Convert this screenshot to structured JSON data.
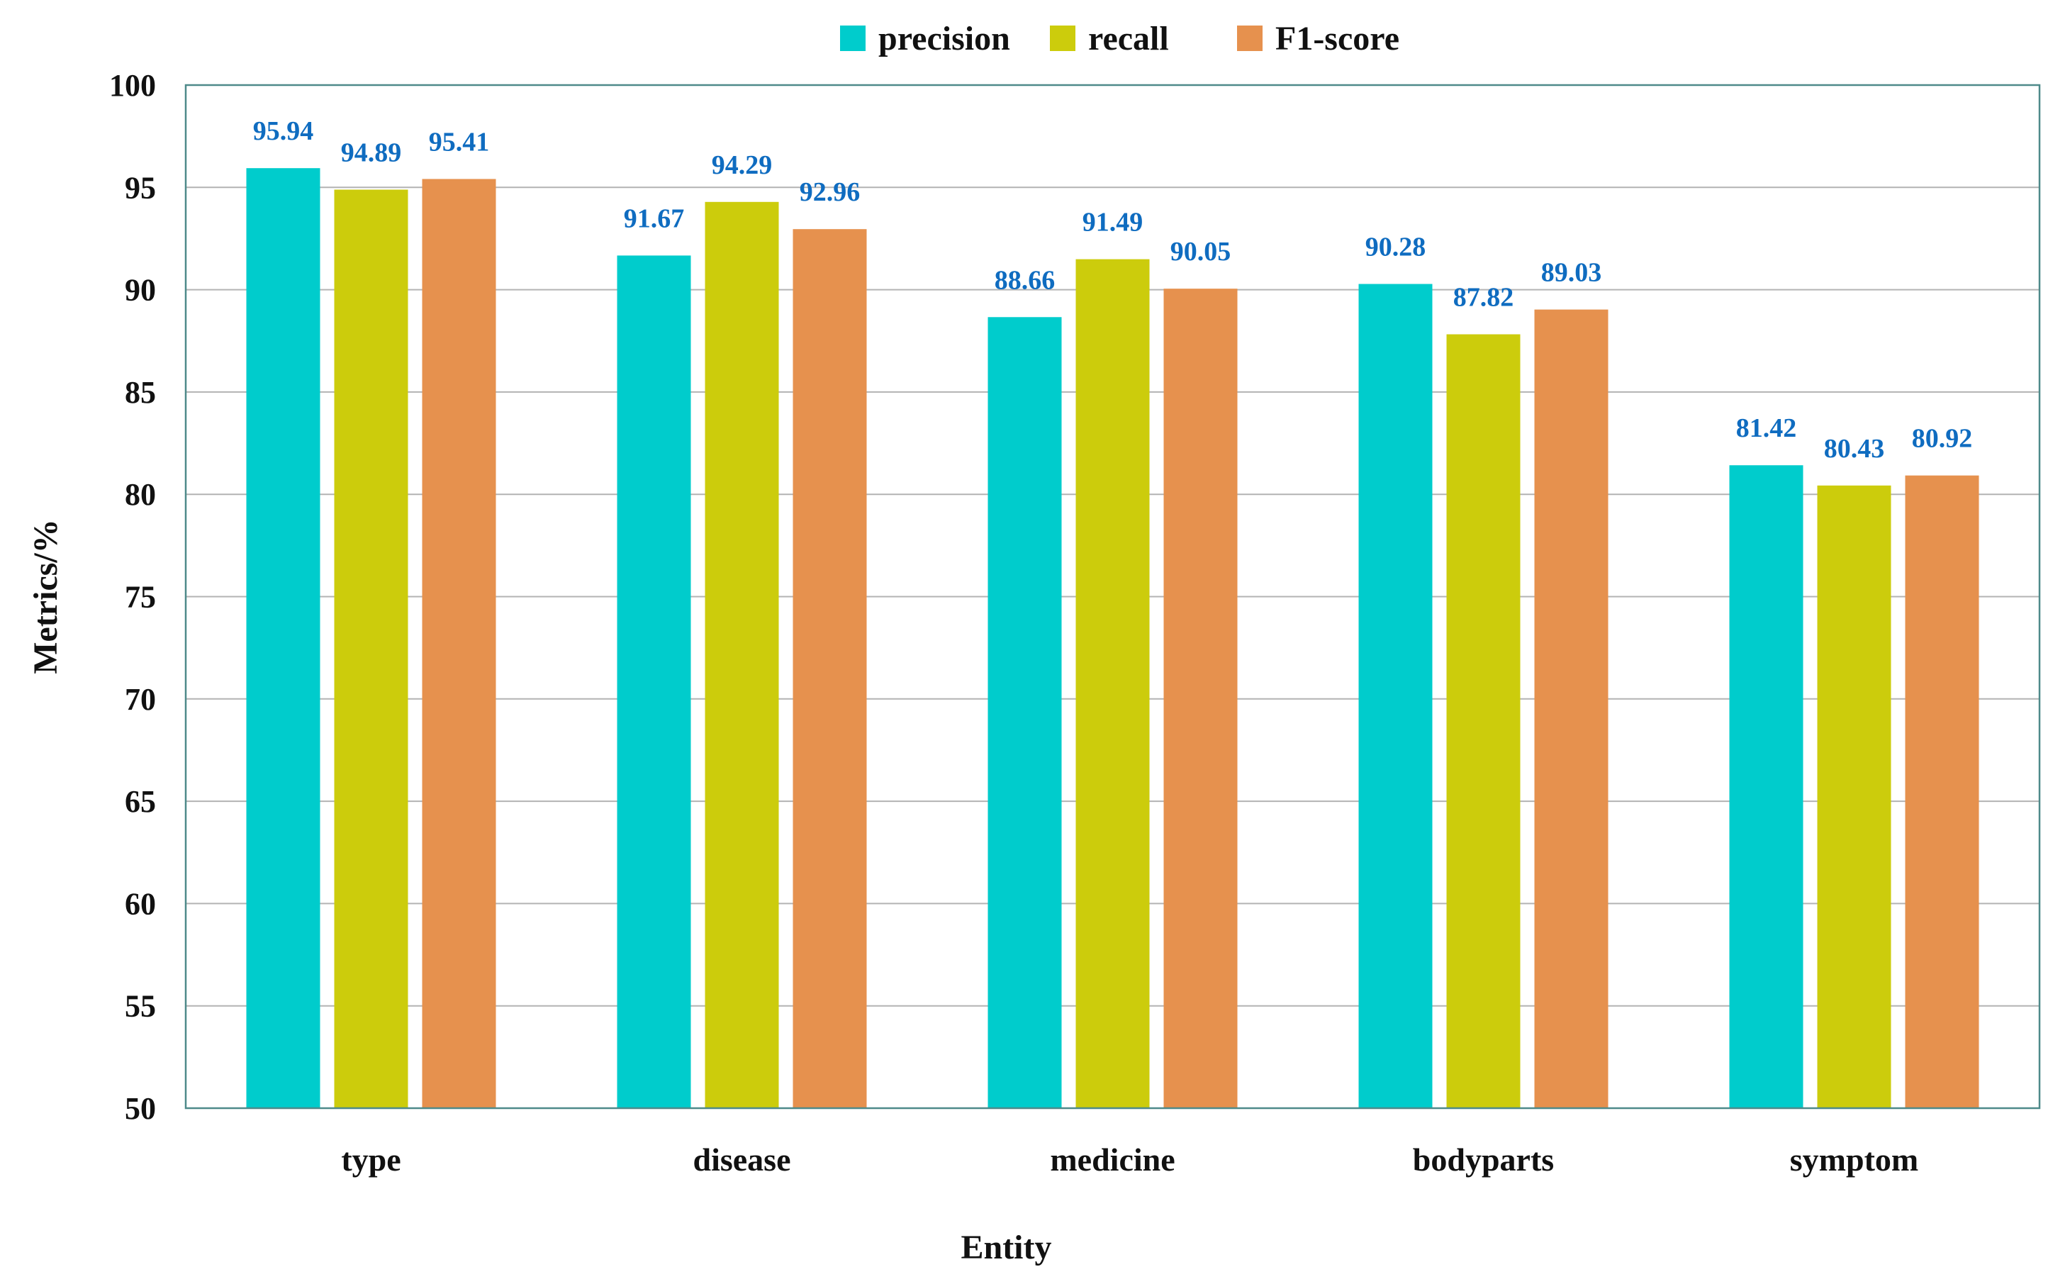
{
  "chart_data": {
    "type": "bar",
    "title": "",
    "xlabel": "Entity",
    "ylabel": "Metrics/%",
    "categories": [
      "type",
      "disease",
      "medicine",
      "bodyparts",
      "symptom"
    ],
    "series": [
      {
        "name": "precision",
        "color": "#00CCCC",
        "values": [
          95.94,
          91.67,
          88.66,
          90.28,
          81.42
        ],
        "labels": [
          "95.94",
          "91.67",
          "88.66",
          "90.28",
          "81.42"
        ]
      },
      {
        "name": "recall",
        "color": "#CCCC0C",
        "values": [
          94.89,
          94.29,
          91.49,
          87.82,
          80.43
        ],
        "labels": [
          "94.89",
          "94.29",
          "91.49",
          "87.82",
          "80.43"
        ]
      },
      {
        "name": "F1-score",
        "color": "#E6914E",
        "values": [
          95.41,
          92.96,
          90.05,
          89.03,
          80.92
        ],
        "labels": [
          "95.41",
          "92.96",
          "90.05",
          "89.03",
          "80.92"
        ]
      }
    ],
    "ylim": [
      50,
      100
    ],
    "yticks": [
      "50",
      "55",
      "60",
      "65",
      "70",
      "75",
      "80",
      "85",
      "90",
      "95",
      "100"
    ],
    "grid": true,
    "legend_position": "top-center",
    "data_label_color": "#0F6CC0",
    "grid_color": "#B3B3B3",
    "plot_border_color": "#4E8A8A"
  }
}
